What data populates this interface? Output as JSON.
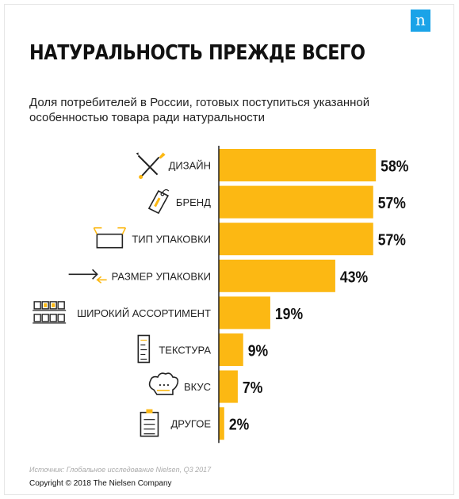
{
  "header": {
    "logo_letter": "n",
    "title": "НАТУРАЛЬНОСТЬ ПРЕЖДЕ ВСЕГО",
    "subtitle": "Доля потребителей в России, готовых поступиться  указанной особенностью товара ради натуральности"
  },
  "chart_data": {
    "type": "bar",
    "orientation": "horizontal",
    "categories": [
      "ДИЗАЙН",
      "БРЕНД",
      "ТИП УПАКОВКИ",
      "РАЗМЕР УПАКОВКИ",
      "ШИРОКИЙ АССОРТИМЕНТ",
      "ТЕКСТУРА",
      "ВКУС",
      "ДРУГОЕ"
    ],
    "values": [
      58,
      57,
      57,
      43,
      19,
      9,
      7,
      2
    ],
    "value_labels": [
      "58%",
      "57%",
      "57%",
      "43%",
      "19%",
      "9%",
      "7%",
      "2%"
    ],
    "icons": [
      "pencil-brush-icon",
      "brand-tag-icon",
      "open-box-icon",
      "arrows-icon",
      "product-grid-icon",
      "texture-sheet-icon",
      "chef-hat-icon",
      "clipboard-icon"
    ],
    "xlim": [
      0,
      60
    ],
    "grid": false,
    "bar_color": "#fcb813",
    "icon_accent": "#fcb813"
  },
  "footer": {
    "source": "Источник: Глобальное исследование Nielsen, Q3 2017",
    "copyright": "Copyright © 2018 The Nielsen Company"
  }
}
